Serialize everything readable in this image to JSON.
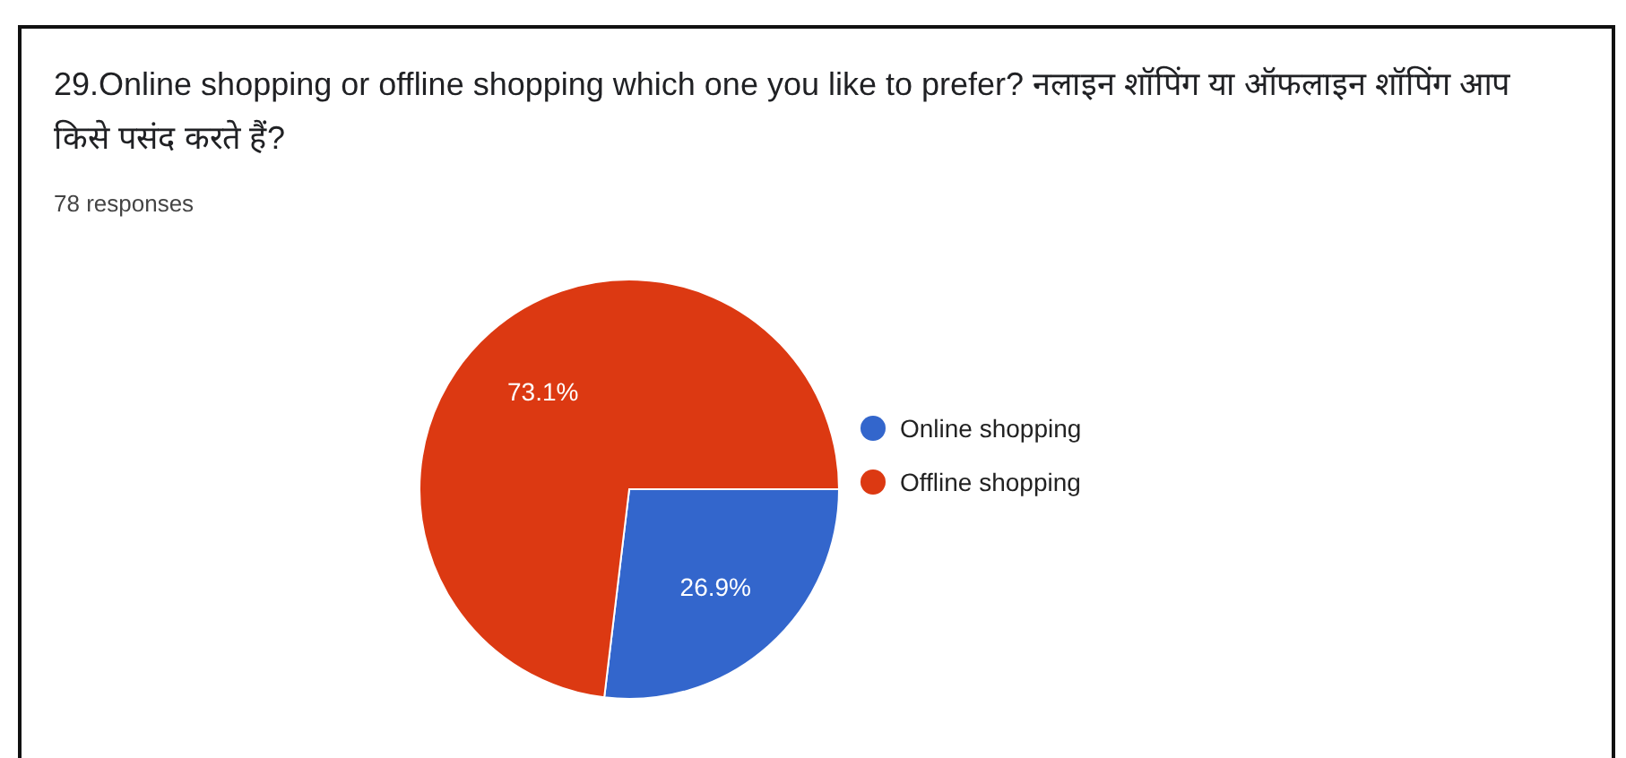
{
  "chart_data": {
    "type": "pie",
    "title": "29.Online shopping or offline shopping which one you like to prefer? नलाइन शॉपिंग या ऑफलाइन शॉपिंग आप किसे पसंद करते हैं?",
    "subtitle": "78 responses",
    "categories": [
      "Online shopping",
      "Offline shopping"
    ],
    "values": [
      26.9,
      73.1
    ],
    "colors": [
      "#3366cc",
      "#dc3912"
    ],
    "value_labels": [
      "26.9%",
      "73.1%"
    ],
    "legend": "right"
  }
}
